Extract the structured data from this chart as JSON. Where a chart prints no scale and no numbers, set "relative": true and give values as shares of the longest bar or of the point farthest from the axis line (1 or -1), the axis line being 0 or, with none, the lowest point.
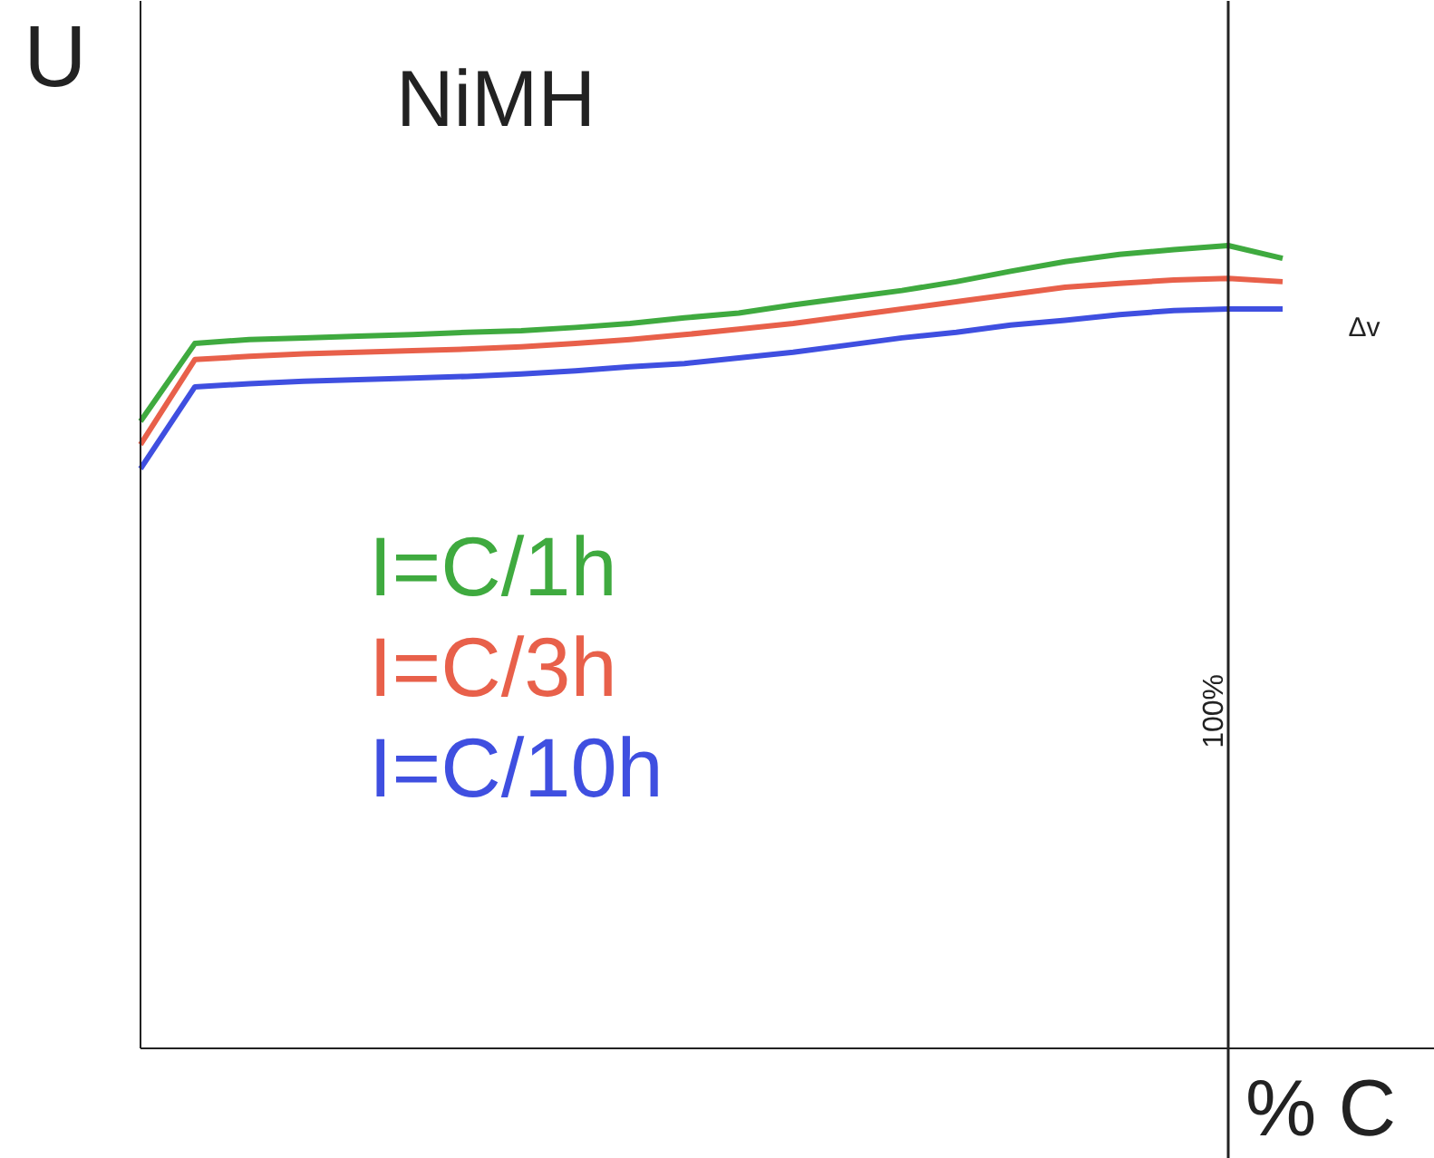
{
  "chart_data": {
    "type": "line",
    "relative": true,
    "title": "NiMH",
    "xlabel": "% C",
    "ylabel": "U",
    "tick_labels": false,
    "categories": [
      null,
      null,
      null,
      null,
      null,
      null,
      null,
      null,
      null,
      null,
      null,
      null,
      null,
      null,
      null,
      null,
      null,
      null,
      null,
      null,
      null,
      null
    ],
    "series": [
      {
        "name": "I=C/1h",
        "color": "#3faa3f",
        "values": [
          0.781,
          0.878,
          0.883,
          0.885,
          0.887,
          0.889,
          0.892,
          0.894,
          0.898,
          0.903,
          0.91,
          0.916,
          0.926,
          0.935,
          0.944,
          0.955,
          0.968,
          0.98,
          0.989,
          0.995,
          1.0,
          0.984
        ]
      },
      {
        "name": "I=C/3h",
        "color": "#e8604a",
        "values": [
          0.752,
          0.858,
          0.862,
          0.865,
          0.867,
          0.869,
          0.871,
          0.874,
          0.878,
          0.883,
          0.889,
          0.896,
          0.903,
          0.912,
          0.921,
          0.93,
          0.939,
          0.948,
          0.953,
          0.957,
          0.959,
          0.955
        ]
      },
      {
        "name": "I=C/10h",
        "color": "#3f4fe0",
        "values": [
          0.722,
          0.824,
          0.828,
          0.831,
          0.833,
          0.835,
          0.837,
          0.84,
          0.844,
          0.849,
          0.853,
          0.86,
          0.867,
          0.876,
          0.885,
          0.892,
          0.901,
          0.907,
          0.914,
          0.919,
          0.921,
          0.921
        ]
      }
    ],
    "annotations": [
      "Δv",
      "100%"
    ]
  }
}
